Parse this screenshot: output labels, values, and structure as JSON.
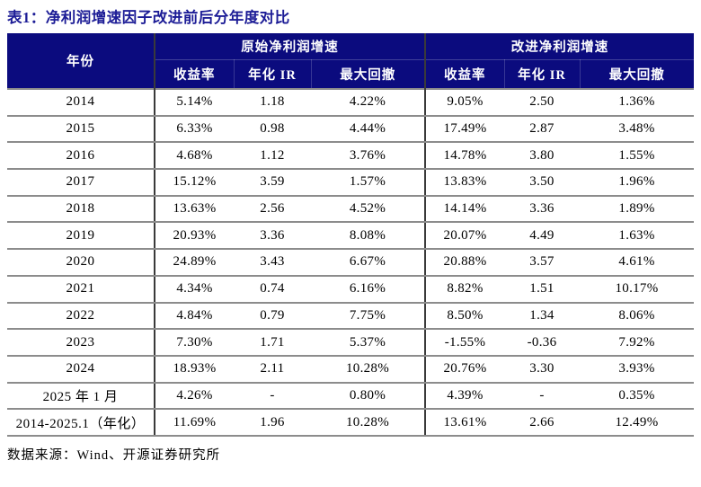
{
  "title": "表1：净利润增速因子改进前后分年度对比",
  "table": {
    "year_header": "年份",
    "groups": [
      "原始净利润增速",
      "改进净利润增速"
    ],
    "sub_headers": [
      "收益率",
      "年化 IR",
      "最大回撤"
    ],
    "rows": [
      {
        "year": "2014",
        "cells": [
          "5.14%",
          "1.18",
          "4.22%",
          "9.05%",
          "2.50",
          "1.36%"
        ]
      },
      {
        "year": "2015",
        "cells": [
          "6.33%",
          "0.98",
          "4.44%",
          "17.49%",
          "2.87",
          "3.48%"
        ]
      },
      {
        "year": "2016",
        "cells": [
          "4.68%",
          "1.12",
          "3.76%",
          "14.78%",
          "3.80",
          "1.55%"
        ]
      },
      {
        "year": "2017",
        "cells": [
          "15.12%",
          "3.59",
          "1.57%",
          "13.83%",
          "3.50",
          "1.96%"
        ]
      },
      {
        "year": "2018",
        "cells": [
          "13.63%",
          "2.56",
          "4.52%",
          "14.14%",
          "3.36",
          "1.89%"
        ]
      },
      {
        "year": "2019",
        "cells": [
          "20.93%",
          "3.36",
          "8.08%",
          "20.07%",
          "4.49",
          "1.63%"
        ]
      },
      {
        "year": "2020",
        "cells": [
          "24.89%",
          "3.43",
          "6.67%",
          "20.88%",
          "3.57",
          "4.61%"
        ]
      },
      {
        "year": "2021",
        "cells": [
          "4.34%",
          "0.74",
          "6.16%",
          "8.82%",
          "1.51",
          "10.17%"
        ]
      },
      {
        "year": "2022",
        "cells": [
          "4.84%",
          "0.79",
          "7.75%",
          "8.50%",
          "1.34",
          "8.06%"
        ]
      },
      {
        "year": "2023",
        "cells": [
          "7.30%",
          "1.71",
          "5.37%",
          "-1.55%",
          "-0.36",
          "7.92%"
        ]
      },
      {
        "year": "2024",
        "cells": [
          "18.93%",
          "2.11",
          "10.28%",
          "20.76%",
          "3.30",
          "3.93%"
        ]
      },
      {
        "year": "2025 年 1 月",
        "cells": [
          "4.26%",
          "-",
          "0.80%",
          "4.39%",
          "-",
          "0.35%"
        ]
      },
      {
        "year": "2014-2025.1（年化）",
        "cells": [
          "11.69%",
          "1.96",
          "10.28%",
          "13.61%",
          "2.66",
          "12.49%"
        ]
      }
    ]
  },
  "footer": "数据来源：Wind、开源证券研究所",
  "colors": {
    "header_bg": "#0b0b7e",
    "title_text": "#1c1c96",
    "row_line": "#8c8c8c",
    "divider": "#3a3a3a",
    "body_text": "#000000"
  }
}
